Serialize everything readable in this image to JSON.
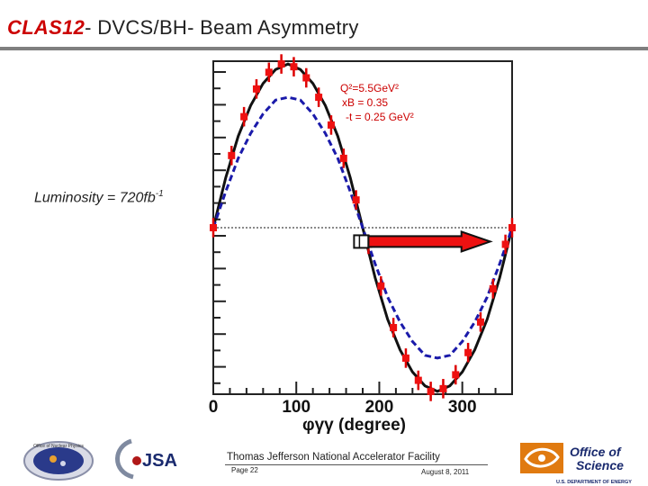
{
  "slide": {
    "title_prefix": "CLAS12",
    "title_rest": "- DVCS/BH- Beam Asymmetry",
    "luminosity_label": "Luminosity = 720fb",
    "luminosity_exp": "-1",
    "kin1": "Q²=5.5GeV²",
    "kin2": "xB = 0.35",
    "kin3": "-t = 0.25 GeV²"
  },
  "chart_data": {
    "type": "line",
    "title": "",
    "xlabel": "φγγ (degree)",
    "ylabel": "",
    "xlim": [
      0,
      360
    ],
    "ylim": [
      -0.6,
      0.6
    ],
    "xticks": [
      0,
      100,
      200,
      300
    ],
    "xtick_labels": [
      "0",
      "100",
      "200",
      "300"
    ],
    "grid": false,
    "series": [
      {
        "style": "solid-black",
        "x": [
          0,
          15,
          30,
          45,
          60,
          75,
          90,
          105,
          120,
          135,
          150,
          165,
          180,
          195,
          210,
          225,
          240,
          255,
          270,
          285,
          300,
          315,
          330,
          345,
          360
        ],
        "y": [
          0,
          0.18,
          0.33,
          0.44,
          0.52,
          0.57,
          0.59,
          0.57,
          0.52,
          0.44,
          0.33,
          0.18,
          0,
          -0.18,
          -0.33,
          -0.44,
          -0.52,
          -0.57,
          -0.59,
          -0.57,
          -0.52,
          -0.44,
          -0.33,
          -0.18,
          0
        ]
      },
      {
        "style": "dashed-blue",
        "x": [
          0,
          15,
          30,
          45,
          60,
          75,
          90,
          105,
          120,
          135,
          150,
          165,
          180,
          195,
          210,
          225,
          240,
          255,
          270,
          285,
          300,
          315,
          330,
          345,
          360
        ],
        "y": [
          0,
          0.13,
          0.25,
          0.34,
          0.41,
          0.46,
          0.47,
          0.46,
          0.41,
          0.34,
          0.25,
          0.13,
          0,
          -0.13,
          -0.25,
          -0.34,
          -0.41,
          -0.46,
          -0.47,
          -0.46,
          -0.41,
          -0.34,
          -0.25,
          -0.13,
          0
        ]
      }
    ],
    "points": {
      "x": [
        0,
        22,
        37,
        52,
        67,
        82,
        97,
        112,
        127,
        142,
        157,
        172,
        187,
        202,
        217,
        232,
        247,
        262,
        277,
        292,
        307,
        322,
        337,
        352,
        360
      ],
      "y": [
        0,
        0.26,
        0.4,
        0.5,
        0.56,
        0.59,
        0.58,
        0.54,
        0.47,
        0.37,
        0.25,
        0.1,
        -0.06,
        -0.21,
        -0.36,
        -0.47,
        -0.55,
        -0.59,
        -0.58,
        -0.53,
        -0.45,
        -0.34,
        -0.22,
        -0.06,
        0
      ],
      "err": 0.035
    },
    "arrow": {
      "from": 175,
      "to": 325,
      "y": -0.05
    }
  },
  "footer": {
    "lab": "Thomas Jefferson National Accelerator Facility",
    "page": "Page 22",
    "date": "August 8, 2011",
    "ofs_line1": "Office of",
    "ofs_line2": "Science",
    "doe": "U.S. DEPARTMENT OF ENERGY",
    "jsa": "JSA",
    "onp": "Office of Nuclear Physics"
  },
  "colors": {
    "accent": "#cc0000",
    "blue": "#1a1aaa",
    "navy": "#1a2a6e",
    "orange": "#e07a10"
  }
}
